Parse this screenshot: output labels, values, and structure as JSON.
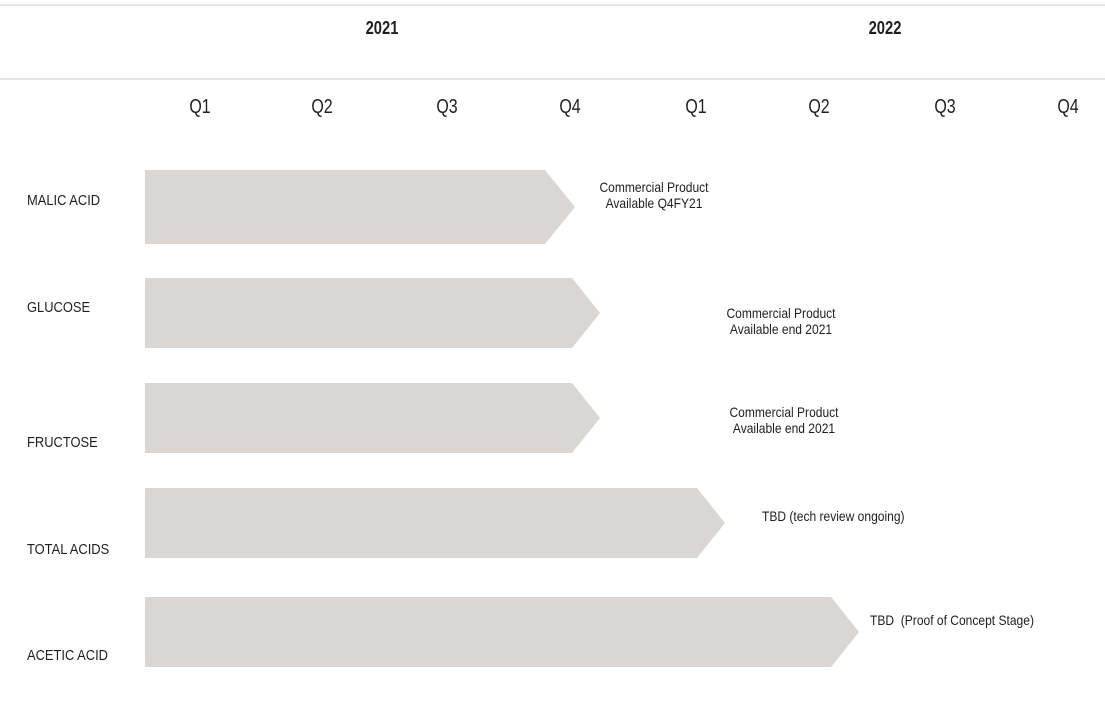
{
  "header": {
    "years": [
      "2021",
      "2022"
    ],
    "quarters": [
      "Q1",
      "Q2",
      "Q3",
      "Q4",
      "Q1",
      "Q2",
      "Q3",
      "Q4"
    ]
  },
  "rows": [
    {
      "label": "MALIC ACID",
      "note_line1": "Commercial Product",
      "note_line2": "Available Q4FY21"
    },
    {
      "label": "GLUCOSE",
      "note_line1": "Commercial Product",
      "note_line2": "Available end 2021"
    },
    {
      "label": "FRUCTOSE",
      "note_line1": "Commercial Product",
      "note_line2": "Available end 2021"
    },
    {
      "label": "TOTAL ACIDS",
      "note_line1": "TBD (tech review ongoing)"
    },
    {
      "label": "ACETIC ACID",
      "note_line1": "TBD  (Proof of Concept Stage)"
    }
  ],
  "colors": {
    "arrow_fill": "#d9d6d4",
    "rule": "#e6e6e6",
    "text": "#1f1f1f"
  }
}
